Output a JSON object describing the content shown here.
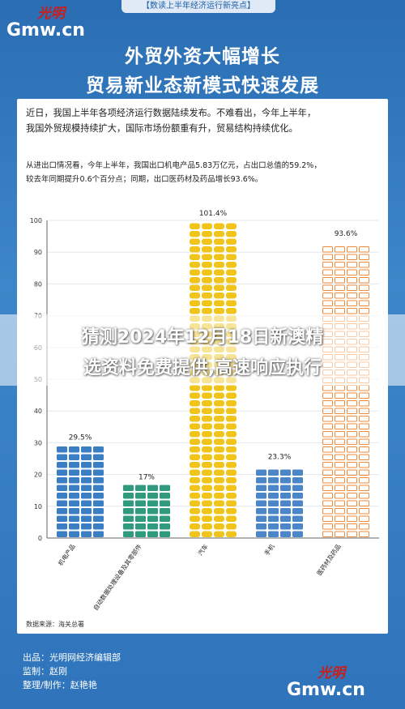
{
  "watermark": {
    "top": "光明",
    "bottom": "Gmw.cn"
  },
  "header_tag": "【数读上半年经济运行新亮点】",
  "title_line1": "外贸外资大幅增长",
  "title_line2": "贸易新业态新模式快速发展",
  "intro_line1": "近日，我国上半年各项经济运行数据陆续发布。不难看出，今年上半年，",
  "intro_line2": "我国外贸规模持续扩大，国际市场份额重有升，贸易结构持续优化。",
  "note_line1": "从进出口情况看，今年上半年，我国出口机电产品5.83万亿元，占出口总值的59.2%，",
  "note_line2": "较去年同期提升0.6个百分点；同期，出口医药材及药品增长93.6%。",
  "banner_line1": "猜测2024年12月18日新澳精",
  "banner_line2": "选资料免费提供,高速响应执行",
  "source": "数据来源：海关总署",
  "credits": [
    {
      "label": "出品：",
      "value": "光明网经济编辑部"
    },
    {
      "label": "监制：",
      "value": "赵刚"
    },
    {
      "label": "整理/制作：",
      "value": "赵艳艳"
    }
  ],
  "colors": {
    "bar1": "#3a7fc4",
    "bar2": "#2f9a7e",
    "bar3": "#f0c419",
    "bar4": "#4a86c8",
    "bar5": "#ef8a3a"
  },
  "chart_data": {
    "type": "bar",
    "categories": [
      "机电产品",
      "自动数据处理设备及其零部件",
      "汽车",
      "手机",
      "医药材及药品"
    ],
    "values": [
      29.5,
      17,
      101.4,
      23.3,
      93.6
    ],
    "value_labels": [
      "29.5%",
      "17%",
      "101.4%",
      "23.3%",
      "93.6%"
    ],
    "icons": [
      "monitor-icon",
      "computer-icon",
      "car-icon",
      "phone-icon",
      "syringe-icon"
    ],
    "yticks": [
      0,
      10,
      20,
      30,
      40,
      50,
      60,
      70,
      80,
      90,
      100
    ],
    "ylim": [
      0,
      100
    ],
    "grid": true,
    "xlabel": "",
    "ylabel": ""
  }
}
